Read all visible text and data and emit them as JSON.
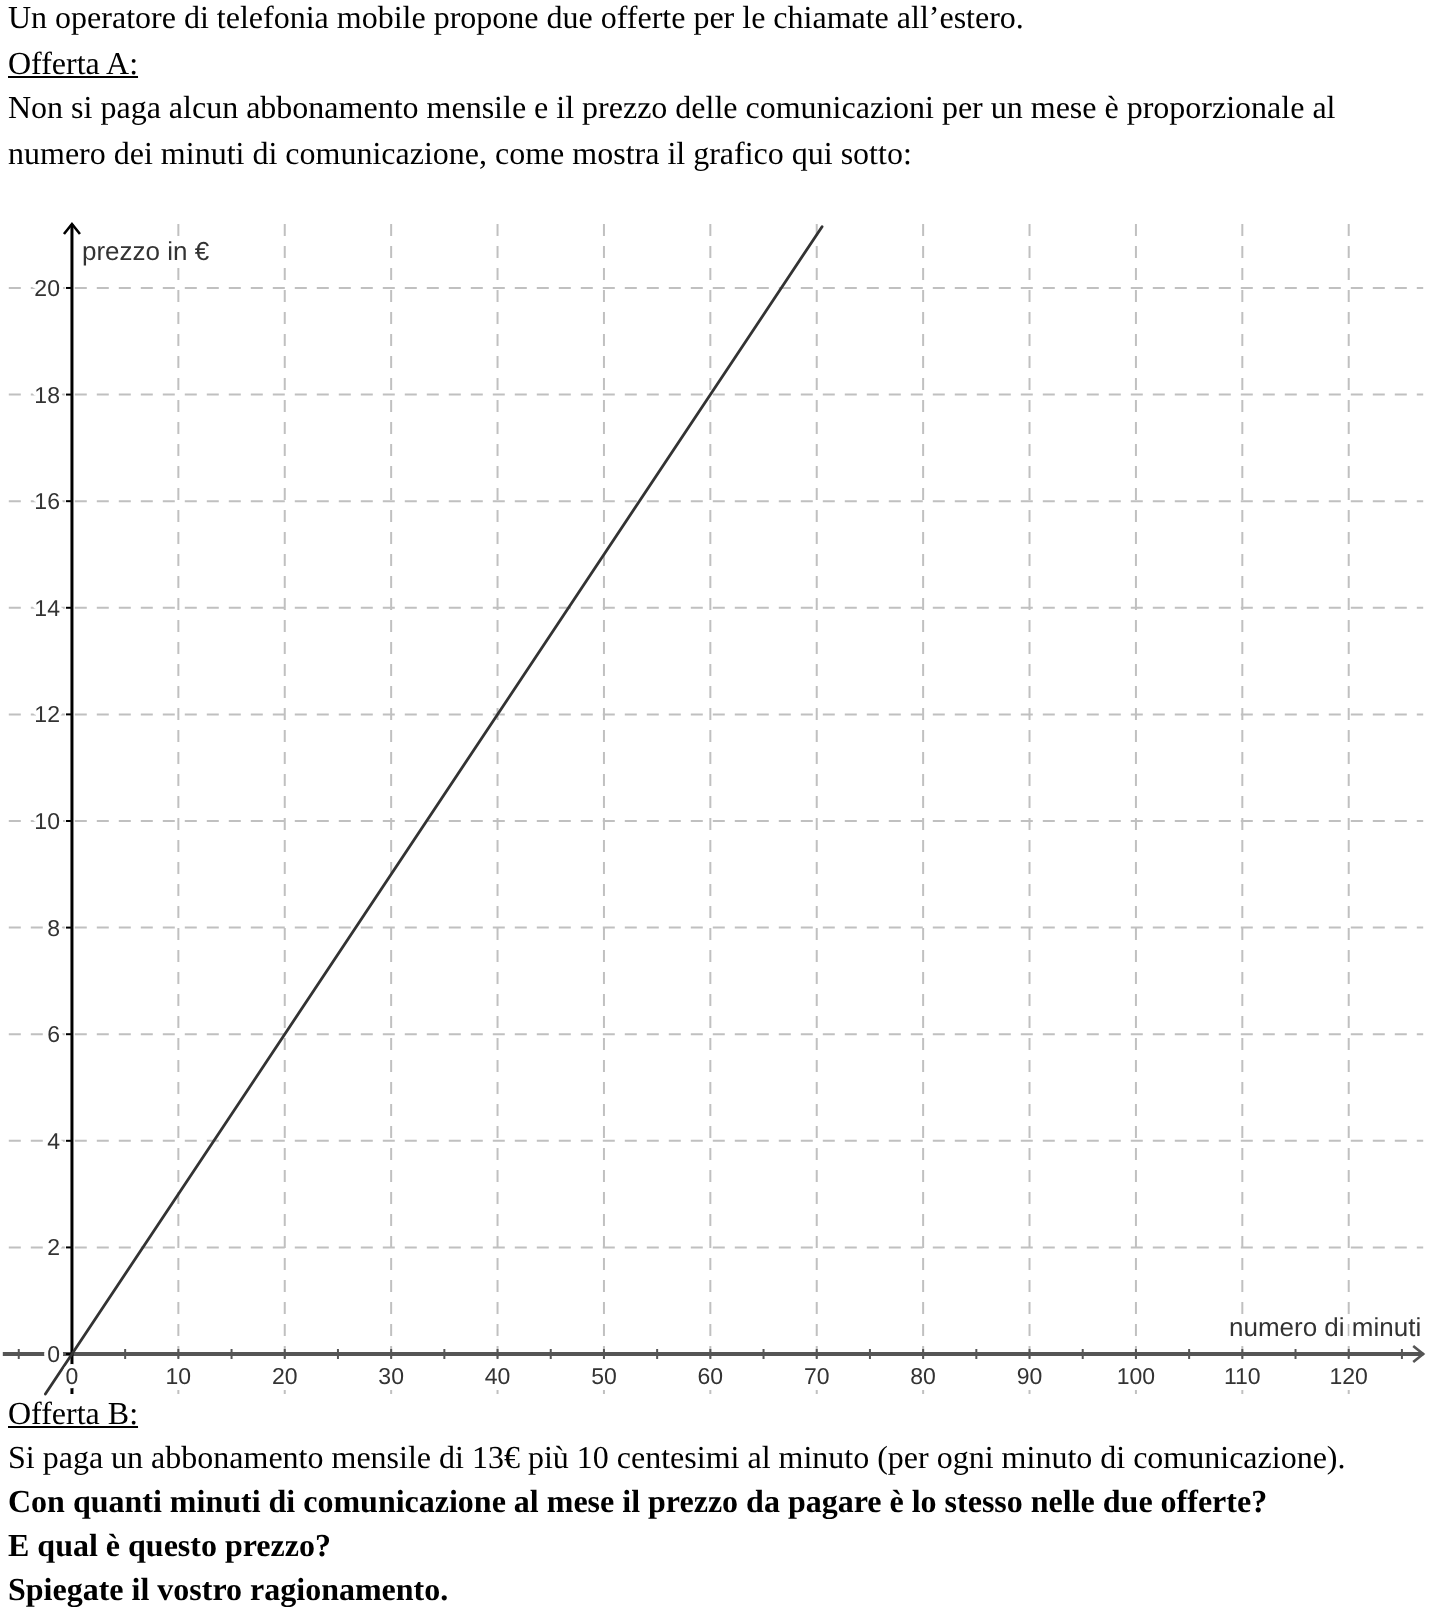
{
  "chart_data": {
    "type": "line",
    "title": "Un operatore di telefonia mobile propone due offerte per le chiamate all’estero.",
    "annotations": [
      "Offerta A:",
      "Non si paga alcun abbonamento mensile e il prezzo delle comunicazioni per un mese è proporzionale al numero dei minuti di comunicazione, come mostra il grafico qui sotto:",
      "Offerta B:",
      "Si paga un abbonamento mensile di 13€ più 10 centesimi al minuto (per ogni minuto di comunicazione).",
      "Con quanti minuti di comunicazione al mese il prezzo da pagare è lo stesso nelle due offerte?",
      "E qual è questo prezzo?",
      "Spiegate il vostro ragionamento."
    ],
    "xlabel": "numero di minuti",
    "ylabel": "prezzo in €",
    "x": [
      -2.5,
      70.5
    ],
    "series": [
      {
        "color": "#333333",
        "values": [
          -0.75,
          21.15
        ]
      }
    ],
    "xlim": [
      -6.5,
      127
    ],
    "ylim": [
      -0.75,
      21.2
    ],
    "xticks": [
      {
        "value": -5,
        "label": null
      },
      0,
      {
        "value": 5,
        "label": null
      },
      10,
      {
        "value": 15,
        "label": null
      },
      20,
      {
        "value": 25,
        "label": null
      },
      30,
      {
        "value": 35,
        "label": null
      },
      40,
      {
        "value": 45,
        "label": null
      },
      50,
      {
        "value": 55,
        "label": null
      },
      60,
      {
        "value": 65,
        "label": null
      },
      70,
      {
        "value": 75,
        "label": null
      },
      80,
      {
        "value": 85,
        "label": null
      },
      90,
      {
        "value": 95,
        "label": null
      },
      100,
      {
        "value": 105,
        "label": null
      },
      110,
      {
        "value": 115,
        "label": null
      },
      120,
      {
        "value": 125,
        "label": null
      }
    ],
    "yticks": [
      0,
      2,
      4,
      6,
      8,
      10,
      12,
      14,
      16,
      18,
      20
    ],
    "grid": true
  }
}
